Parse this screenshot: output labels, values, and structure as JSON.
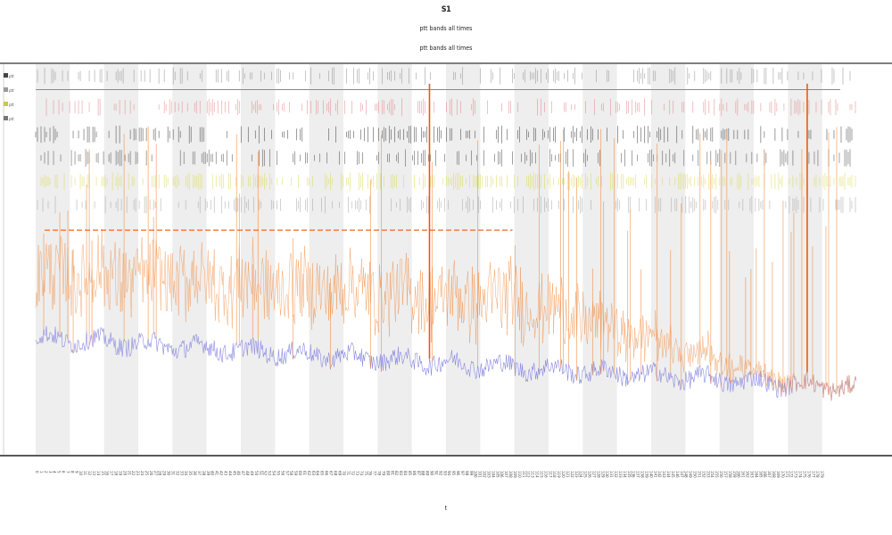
{
  "chart_data": {
    "type": "line",
    "title": "S1",
    "subtitle_lines": [
      "ptt bands all times",
      "ptt bands all times"
    ],
    "xlabel": "t",
    "ylabel": "",
    "ylim": [
      0,
      1
    ],
    "grid": true,
    "legend_position": "left",
    "legend": [
      "ptt",
      "ptt",
      "ptt",
      "ptt"
    ],
    "n_points": 920,
    "band_count": 24,
    "series": [
      {
        "name": "",
        "color": "#8a8ae0",
        "role": "baseline",
        "start": 0.3,
        "end": 0.17
      },
      {
        "name": "",
        "color": "#f08a3c",
        "role": "upper-envelope",
        "level": 0.58
      },
      {
        "name": "",
        "color": "#f08a3c",
        "role": "spikes",
        "peak": 0.95
      }
    ],
    "marker_rows": [
      {
        "name": "",
        "color": "#8a8a8a",
        "level": 0.97
      },
      {
        "name": "",
        "color": "#e08080",
        "level": 0.89
      },
      {
        "name": "",
        "color": "#303030",
        "level": 0.82
      },
      {
        "name": "",
        "color": "#404040",
        "level": 0.76
      },
      {
        "name": "",
        "color": "#d8d84a",
        "level": 0.7
      },
      {
        "name": "",
        "color": "#a0a0a0",
        "level": 0.64
      }
    ],
    "threshold_line": {
      "color": "#f06a1a",
      "level": 0.575
    }
  }
}
